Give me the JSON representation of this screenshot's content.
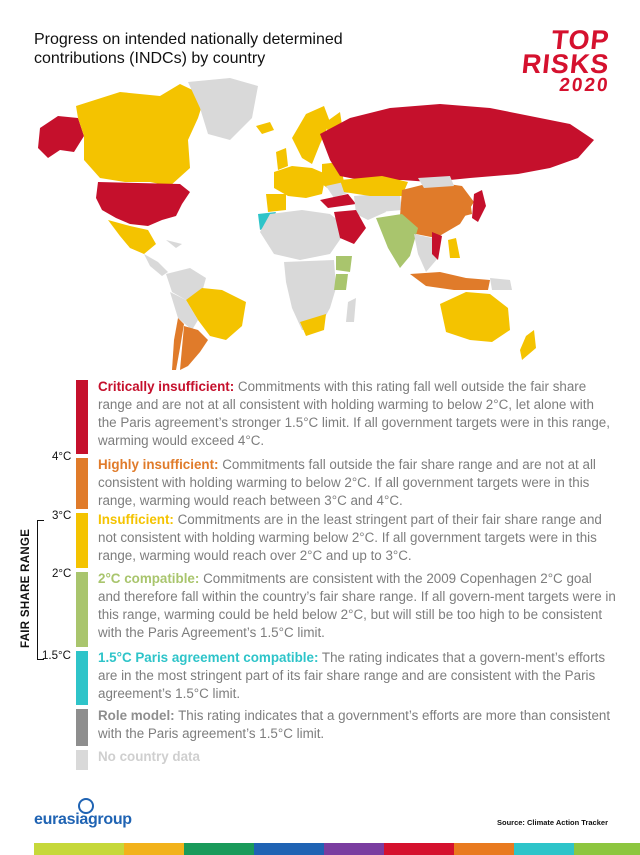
{
  "title": "Progress on intended nationally determined contributions (INDCs) by country",
  "brand": {
    "line1": "TOP",
    "line2": "RISKS",
    "line3": "2020",
    "color": "#d5112e"
  },
  "colors": {
    "critically_insufficient": "#c5102c",
    "highly_insufficient": "#e07b2a",
    "insufficient": "#f4c300",
    "two_c_compatible": "#a9c56d",
    "paris_compatible": "#2ec4c9",
    "role_model": "#8e8e8e",
    "no_data": "#d9d9d9"
  },
  "legend": [
    {
      "key": "critically_insufficient",
      "heading": "Critically insufficient:",
      "text": " Commitments with this rating fall well outside the fair share range and are not at all consistent with holding warming to below 2°C, let alone with the Paris agreement’s stronger 1.5°C limit. If all government targets were in this range, warming would exceed 4°C."
    },
    {
      "key": "highly_insufficient",
      "heading": "Highly insufficient:",
      "text": " Commitments fall outside the fair share range and are not at all consistent with holding warming to below 2°C. If all government targets were in this range, warming would reach between 3°C and 4°C."
    },
    {
      "key": "insufficient",
      "heading": "Insufficient:",
      "text": " Commitments are in the least stringent part of their fair share range and not consistent with holding warming below 2°C. If all government targets were in this range, warming would reach over 2°C and up to 3°C."
    },
    {
      "key": "two_c_compatible",
      "heading": "2°C compatible:",
      "text": " Commitments are consistent with the 2009 Copenhagen 2°C goal and therefore fall within the country’s fair share range. If all govern-ment targets were in this range, warming could be held below 2°C, but will still be too high to be consistent with the Paris Agreement’s 1.5°C limit."
    },
    {
      "key": "paris_compatible",
      "heading": "1.5°C  Paris agreement compatible:",
      "text": " The rating indicates that a govern-ment’s efforts are in the most stringent part of its fair share range and are consistent with the Paris agreement’s 1.5°C limit."
    },
    {
      "key": "role_model",
      "heading": "Role model:",
      "text": " This rating indicates that a government’s efforts are more than consistent with the Paris agreement’s 1.5°C limit."
    },
    {
      "key": "no_data",
      "heading": "No country data",
      "text": ""
    }
  ],
  "scale": {
    "label": "FAIR SHARE RANGE",
    "ticks": [
      "4°C",
      "3°C",
      "2°C",
      "1.5°C"
    ]
  },
  "logo": {
    "text": "eurasiagroup"
  },
  "source": "Source: Climate Action Tracker"
}
